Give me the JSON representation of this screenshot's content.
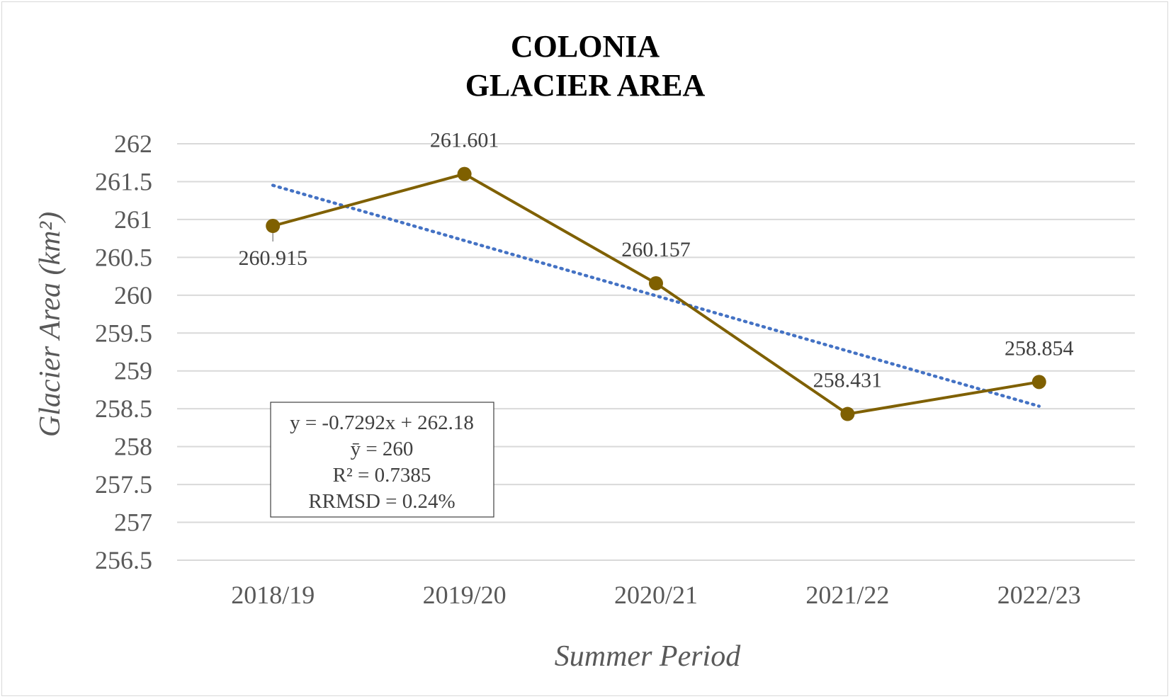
{
  "chart_data": {
    "type": "line",
    "title": [
      "COLONIA",
      "GLACIER AREA"
    ],
    "xlabel": "Summer Period",
    "ylabel": "Glacier Area (km²)",
    "categories": [
      "2018/19",
      "2019/20",
      "2020/21",
      "2021/22",
      "2022/23"
    ],
    "series": [
      {
        "values": [
          260.915,
          261.601,
          260.157,
          258.431,
          258.854
        ],
        "data_labels": [
          "260.915",
          "261.601",
          "260.157",
          "258.431",
          "258.854"
        ],
        "color": "#7f6000"
      }
    ],
    "trendline": {
      "type": "linear",
      "slope": -0.7292,
      "intercept": 262.18,
      "color": "#4472c4",
      "style": "dotted"
    },
    "ylim": [
      256.5,
      262
    ],
    "yticks": [
      "262",
      "261.5",
      "261",
      "260.5",
      "260",
      "259.5",
      "259",
      "258.5",
      "258",
      "257.5",
      "257",
      "256.5"
    ],
    "ytick_values": [
      262,
      261.5,
      261,
      260.5,
      260,
      259.5,
      259,
      258.5,
      258,
      257.5,
      257,
      256.5
    ],
    "grid": true,
    "legend": false,
    "stats_box": [
      "y = -0.7292x + 262.18",
      "ȳ = 260",
      "R² = 0.7385",
      "RRMSD = 0.24%"
    ],
    "gridline_color": "#d9d9d9"
  }
}
